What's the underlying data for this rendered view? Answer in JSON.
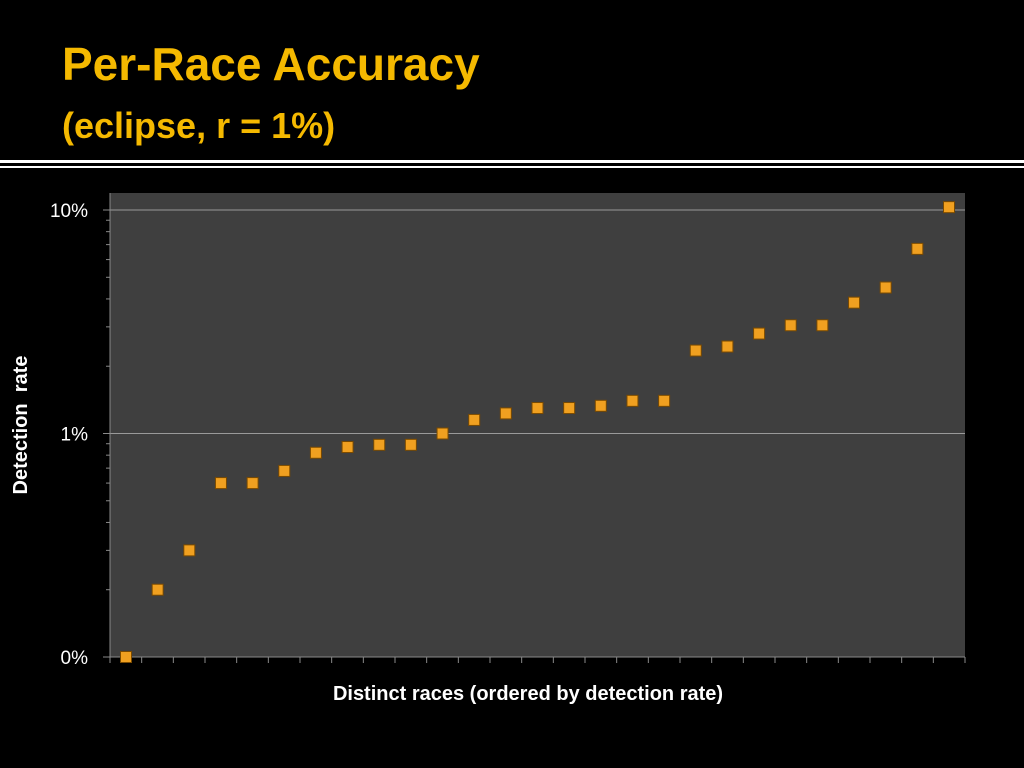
{
  "slide": {
    "title": "Per-Race Accuracy",
    "subtitle": "(eclipse, r = 1%)"
  },
  "colors": {
    "background": "#000000",
    "title": "#f5b900",
    "plot_area": "#3f3f3f",
    "marker": "#f0a020",
    "gridline": "#9a9a9a"
  },
  "chart_data": {
    "type": "scatter",
    "xlabel": "Distinct races (ordered by detection rate)",
    "ylabel": "Detection  rate",
    "y_scale": "log",
    "ylim_percent": [
      0.1,
      10
    ],
    "y_ticks": [
      {
        "value": 0.1,
        "label": "0%"
      },
      {
        "value": 1,
        "label": "1%"
      },
      {
        "value": 10,
        "label": "10%"
      }
    ],
    "grid": "horizontal major",
    "legend": "none",
    "x": [
      1,
      2,
      3,
      4,
      5,
      6,
      7,
      8,
      9,
      10,
      11,
      12,
      13,
      14,
      15,
      16,
      17,
      18,
      19,
      20,
      21,
      22,
      23,
      24,
      25,
      26,
      27
    ],
    "y_percent": [
      0.1,
      0.2,
      0.3,
      0.6,
      0.6,
      0.68,
      0.82,
      0.87,
      0.89,
      0.89,
      1.0,
      1.15,
      1.23,
      1.3,
      1.3,
      1.33,
      1.4,
      1.4,
      2.35,
      2.45,
      2.8,
      3.05,
      3.05,
      3.85,
      4.5,
      6.7,
      10.3
    ]
  }
}
